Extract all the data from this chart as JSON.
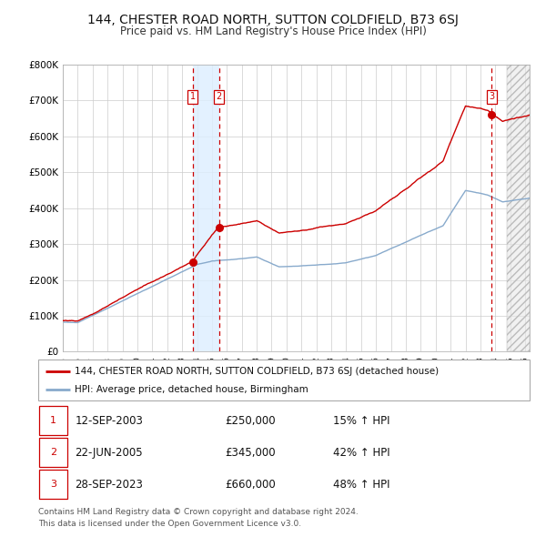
{
  "title": "144, CHESTER ROAD NORTH, SUTTON COLDFIELD, B73 6SJ",
  "subtitle": "Price paid vs. HM Land Registry's House Price Index (HPI)",
  "legend_label_red": "144, CHESTER ROAD NORTH, SUTTON COLDFIELD, B73 6SJ (detached house)",
  "legend_label_blue": "HPI: Average price, detached house, Birmingham",
  "transactions": [
    {
      "num": 1,
      "date": "12-SEP-2003",
      "price": 250000,
      "price_str": "£250,000",
      "pct": "15% ↑ HPI",
      "x_year": 2003.7
    },
    {
      "num": 2,
      "date": "22-JUN-2005",
      "price": 345000,
      "price_str": "£345,000",
      "pct": "42% ↑ HPI",
      "x_year": 2005.47
    },
    {
      "num": 3,
      "date": "28-SEP-2023",
      "price": 660000,
      "price_str": "£660,000",
      "pct": "48% ↑ HPI",
      "x_year": 2023.74
    }
  ],
  "footer_line1": "Contains HM Land Registry data © Crown copyright and database right 2024.",
  "footer_line2": "This data is licensed under the Open Government Licence v3.0.",
  "ylim": [
    0,
    800000
  ],
  "xlim_start": 1995.0,
  "xlim_end": 2026.3,
  "future_shade_start": 2024.75,
  "bg_color": "#ffffff",
  "grid_color": "#cccccc",
  "red_color": "#cc0000",
  "blue_color": "#88aacc",
  "highlight_fill_color": "#ddeeff"
}
